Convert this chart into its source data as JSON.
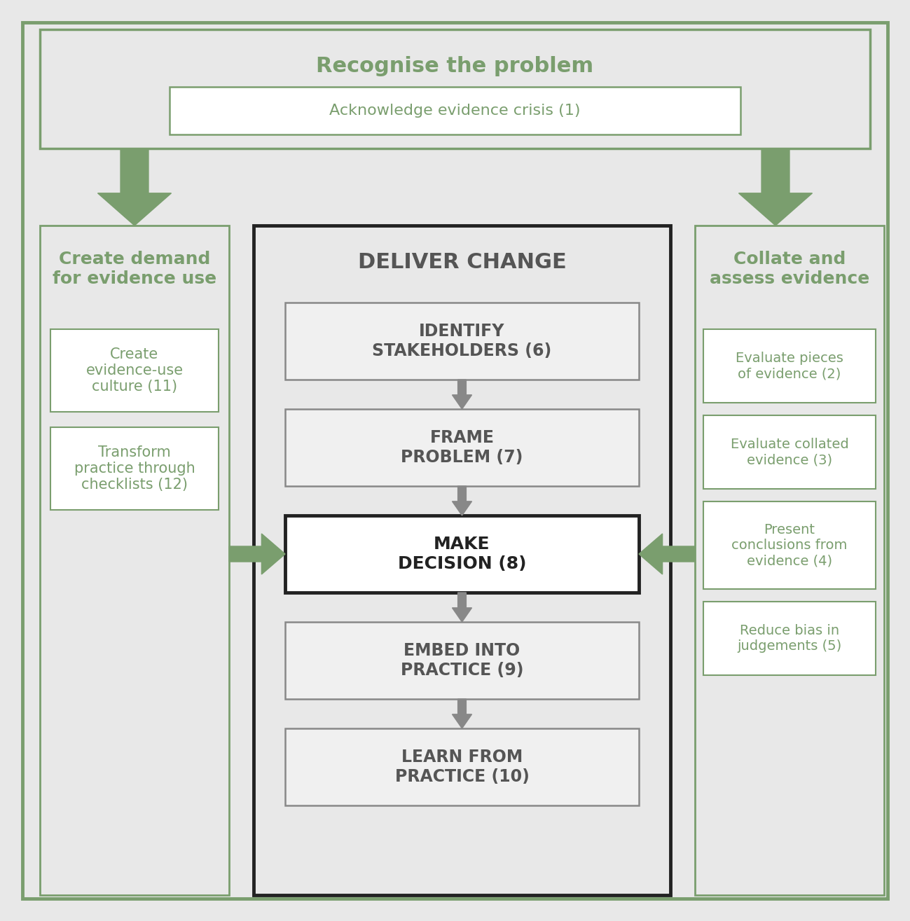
{
  "bg_color": "#e8e8e8",
  "green_color": "#7a9e6e",
  "gray_color": "#888888",
  "dark_gray": "#555555",
  "black_color": "#222222",
  "white_color": "#ffffff",
  "top_box": {
    "title": "Recognise the problem",
    "subtitle": "Acknowledge evidence crisis (1)"
  },
  "left_box": {
    "title": "Create demand\nfor evidence use",
    "items": [
      "Create\nevidence-use\nculture (11)",
      "Transform\npractice through\nchecklists (12)"
    ]
  },
  "center_box": {
    "title": "DELIVER CHANGE",
    "items": [
      "IDENTIFY\nSTAKEHOLDERS (6)",
      "FRAME\nPROBLEM (7)",
      "MAKE\nDECISION (8)",
      "EMBED INTO\nPRACTICE (9)",
      "LEARN FROM\nPRACTICE (10)"
    ]
  },
  "right_box": {
    "title": "Collate and\nassess evidence",
    "items": [
      "Evaluate pieces\nof evidence (2)",
      "Evaluate collated\nevidence (3)",
      "Present\nconclusions from\nevidence (4)",
      "Reduce bias in\njudgements (5)"
    ]
  }
}
